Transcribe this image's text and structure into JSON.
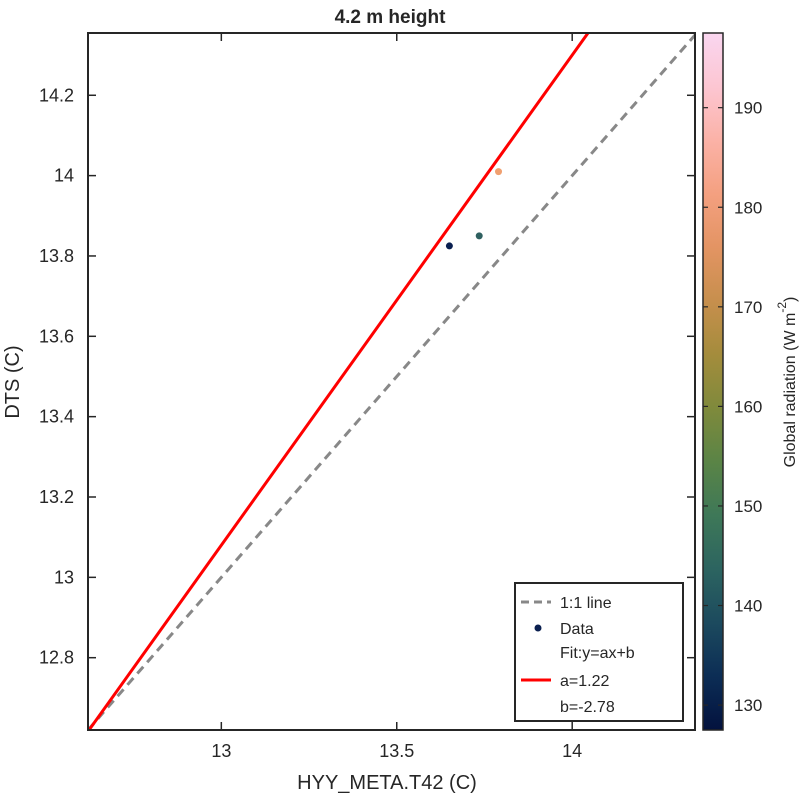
{
  "chart_data": {
    "type": "scatter",
    "title": "4.2 m height",
    "xlabel": "HYY_META.T42 (C)",
    "ylabel": "DTS (C)",
    "xlim": [
      12.62,
      14.35
    ],
    "ylim": [
      12.62,
      14.355
    ],
    "xticks": [
      13,
      13.5,
      14
    ],
    "xtick_labels": [
      "13",
      "13.5",
      "14"
    ],
    "yticks": [
      12.8,
      13,
      13.2,
      13.4,
      13.6,
      13.8,
      14,
      14.2
    ],
    "ytick_labels": [
      "12.8",
      "13",
      "13.2",
      "13.4",
      "13.6",
      "13.8",
      "14",
      "14.2"
    ],
    "grid": false,
    "points": [
      {
        "x": 13.65,
        "y": 13.825,
        "radiation": 128,
        "color": "#0a1f50"
      },
      {
        "x": 13.735,
        "y": 13.85,
        "radiation": 145,
        "color": "#2f6060"
      },
      {
        "x": 13.79,
        "y": 14.01,
        "radiation": 181,
        "color": "#f0a070"
      }
    ],
    "fit": {
      "a": 1.22,
      "b": -2.78,
      "color": "#ff0000"
    },
    "one_to_one": {
      "color": "#888888"
    },
    "colorbar": {
      "label": "Global radiation (W m",
      "label_superscript": "-2",
      "label_close": ")",
      "lim": [
        127.5,
        197.5
      ],
      "ticks": [
        130,
        140,
        150,
        160,
        170,
        180,
        190
      ],
      "tick_labels": [
        "130",
        "140",
        "150",
        "160",
        "170",
        "180",
        "190"
      ],
      "colormap": [
        "#03123e",
        "#0c2d55",
        "#1c4a5e",
        "#2c6460",
        "#3e7858",
        "#5a8446",
        "#7f8a3c",
        "#a48c3c",
        "#c78f4d",
        "#e39463",
        "#f4a080",
        "#fbb2a7",
        "#fcc6d2",
        "#fad6f0"
      ]
    },
    "legend": {
      "position": "bottom-right",
      "entries": [
        {
          "label": "1:1 line",
          "marker": "dashed-line"
        },
        {
          "label": "Data",
          "marker": "dot"
        },
        {
          "label": "Fit:y=ax+b",
          "marker": "none"
        },
        {
          "label": "a=1.22",
          "marker": "solid-line"
        },
        {
          "label": "b=-2.78",
          "marker": "none"
        }
      ]
    }
  }
}
